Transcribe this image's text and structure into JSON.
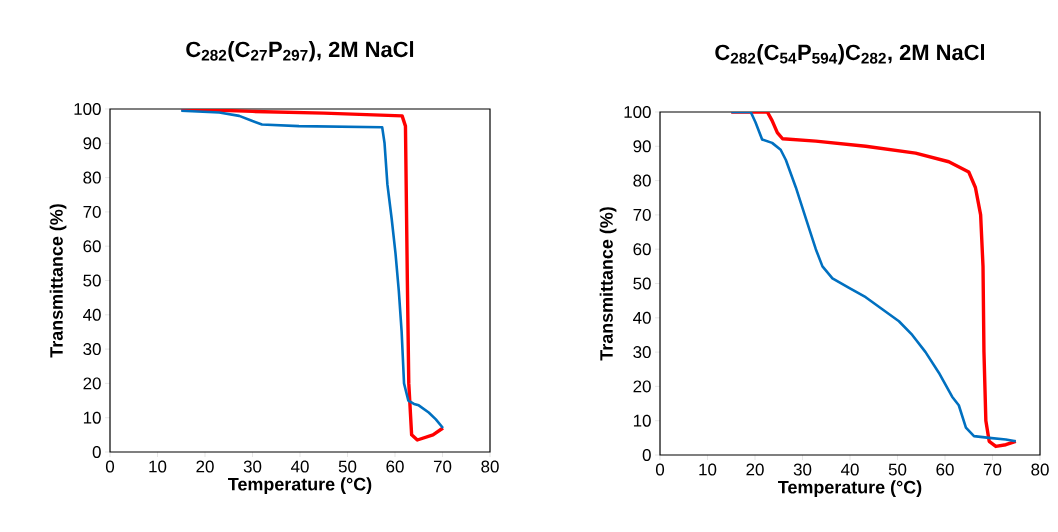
{
  "chart_data": [
    {
      "type": "line",
      "title": "C$_{282}$(C$_{27}$P$_{297}$), 2M NaCl",
      "xlabel": "Temperature (°C)",
      "ylabel": "Transmittance (%)",
      "xlim": [
        0,
        80
      ],
      "ylim": [
        0,
        100
      ],
      "xticks": [
        0,
        10,
        20,
        30,
        40,
        50,
        60,
        70,
        80
      ],
      "yticks": [
        0,
        10,
        20,
        30,
        40,
        50,
        60,
        70,
        80,
        90,
        100
      ],
      "series": [
        {
          "color": "#ff0000",
          "x": [
            15,
            30,
            45,
            61.5,
            62.2,
            62.6,
            62.9,
            63.5,
            64.7,
            68,
            70.1
          ],
          "values": [
            100,
            99.3,
            98.8,
            98,
            95,
            50,
            20,
            5,
            3.5,
            5,
            7
          ]
        },
        {
          "color": "#0070c0",
          "x": [
            15,
            23,
            27.2,
            30,
            32,
            39.8,
            57.3,
            57.8,
            58.4,
            59.3,
            60.1,
            60.8,
            61.4,
            61.9,
            62.8,
            64,
            65,
            67.1,
            68.6,
            70.1
          ],
          "values": [
            99.5,
            99,
            98,
            96.5,
            95.5,
            95,
            94.7,
            90,
            78,
            68,
            58,
            47,
            35,
            20,
            15,
            14,
            13.6,
            11.5,
            9.5,
            7
          ]
        }
      ]
    },
    {
      "type": "line",
      "title": "C$_{282}$(C$_{54}$P$_{594}$)C$_{282}$, 2M NaCl",
      "xlabel": "Temperature (°C)",
      "ylabel": "Transmittance (%)",
      "xlim": [
        0,
        80
      ],
      "ylim": [
        0,
        100
      ],
      "xticks": [
        0,
        10,
        20,
        30,
        40,
        50,
        60,
        70,
        80
      ],
      "yticks": [
        0,
        10,
        20,
        30,
        40,
        50,
        60,
        70,
        80,
        90,
        100
      ],
      "series": [
        {
          "color": "#ff0000",
          "x": [
            15,
            22.6,
            23.6,
            24.7,
            25.8,
            32.8,
            43.3,
            53.8,
            60.8,
            65,
            66.4,
            67.5,
            68,
            68.2,
            68.6,
            69.3,
            70.7,
            72.8,
            74.9
          ],
          "values": [
            100,
            100,
            97.5,
            94,
            92.2,
            91.5,
            90,
            88,
            85.5,
            82.5,
            78,
            70,
            55,
            30,
            10,
            4,
            2.5,
            3,
            4
          ]
        },
        {
          "color": "#0070c0",
          "x": [
            15,
            19.1,
            20.1,
            21.5,
            23.6,
            25.4,
            26.5,
            28.6,
            30.7,
            32.8,
            34.2,
            36.3,
            39.8,
            43.3,
            46.8,
            50.3,
            53.1,
            55.9,
            58.7,
            61.5,
            62.9,
            64.4,
            66.1,
            69.3,
            72.8,
            74.9
          ],
          "values": [
            100,
            100,
            97,
            92,
            91,
            89,
            86,
            78,
            69,
            60,
            55,
            51.5,
            48.7,
            46,
            42.5,
            39,
            35,
            30,
            24,
            17,
            14.5,
            8,
            5.5,
            5,
            4.5,
            4
          ]
        }
      ]
    }
  ]
}
